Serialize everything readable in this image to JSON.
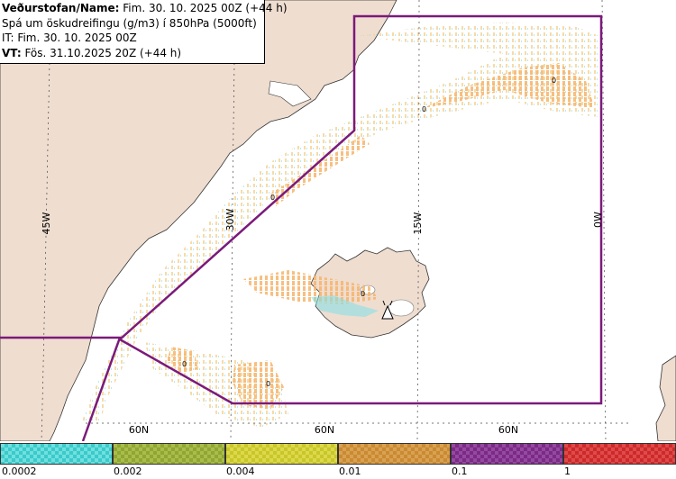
{
  "header": {
    "line1_label": "Veðurstofan/Name:",
    "line1_value": "Fim. 30. 10. 2025 00Z (+44 h)",
    "line2": "Spá um öskudreifingu (g/m3) í 850hPa (5000ft)",
    "line3": "IT: Fim. 30. 10. 2025 00Z",
    "line4_label": "VT:",
    "line4_value": "Fös. 31.10.2025 20Z (+44 h)"
  },
  "map": {
    "longitude_labels": [
      "45W",
      "30W",
      "15W",
      "0W"
    ],
    "latitude_labels": [
      "60N",
      "60N",
      "60N"
    ],
    "contour_labels": [
      "0",
      "0",
      "0",
      "0",
      "0",
      "0"
    ],
    "colors": {
      "land": "#efddd0",
      "sea": "#ffffff",
      "region": "#7b1a7a",
      "ash_light": "#f5c88a",
      "ash_mid": "#f0a64a",
      "ash_cyan": "#7fe0e8"
    },
    "volcano_symbol": "volcano-icon"
  },
  "legend": {
    "tick_labels": [
      "0.0002",
      "0.002",
      "0.004",
      "0.01",
      "0.1",
      "1"
    ],
    "colors": [
      "#3cc9c9",
      "#8fa632",
      "#c9c62a",
      "#c98a32",
      "#7b2a85",
      "#cc2a2a"
    ]
  }
}
